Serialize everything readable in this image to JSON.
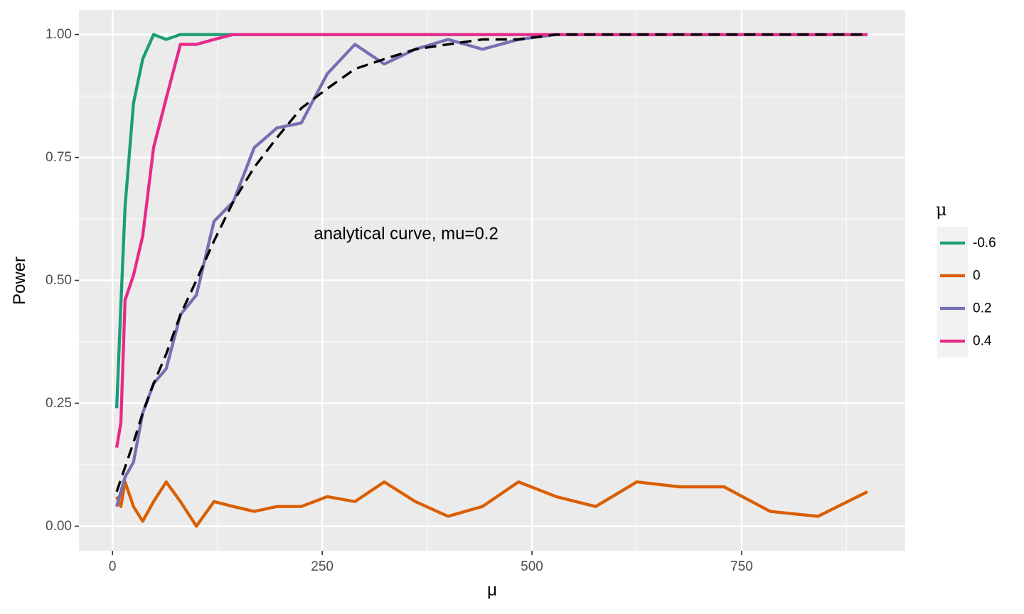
{
  "chart_data": {
    "type": "line",
    "xlabel": "μ",
    "ylabel": "Power",
    "xlim": [
      -40,
      945
    ],
    "ylim": [
      -0.05,
      1.05
    ],
    "x_ticks": [
      0,
      250,
      500,
      750
    ],
    "x_tick_labels": [
      "0",
      "250",
      "500",
      "750"
    ],
    "y_ticks": [
      0.0,
      0.25,
      0.5,
      0.75,
      1.0
    ],
    "y_tick_labels": [
      "0.00",
      "0.25",
      "0.50",
      "0.75",
      "1.00"
    ],
    "grid": true,
    "legend": {
      "title": "μ",
      "position": "right"
    },
    "series": [
      {
        "name": "-0.6",
        "color": "#1b9e77",
        "style": "solid",
        "points": [
          [
            5,
            0.24
          ],
          [
            10,
            0.45
          ],
          [
            15,
            0.65
          ],
          [
            25,
            0.86
          ],
          [
            36,
            0.95
          ],
          [
            49,
            1.0
          ],
          [
            64,
            0.99
          ],
          [
            81,
            1.0
          ],
          [
            100,
            1.0
          ],
          [
            144,
            1.0
          ],
          [
            900,
            1.0
          ]
        ]
      },
      {
        "name": "0",
        "color": "#d95f02",
        "style": "solid",
        "points": [
          [
            5,
            0.06
          ],
          [
            10,
            0.04
          ],
          [
            15,
            0.09
          ],
          [
            25,
            0.04
          ],
          [
            36,
            0.01
          ],
          [
            49,
            0.05
          ],
          [
            64,
            0.09
          ],
          [
            81,
            0.05
          ],
          [
            100,
            0.0
          ],
          [
            121,
            0.05
          ],
          [
            144,
            0.04
          ],
          [
            169,
            0.03
          ],
          [
            196,
            0.04
          ],
          [
            225,
            0.04
          ],
          [
            256,
            0.06
          ],
          [
            289,
            0.05
          ],
          [
            324,
            0.09
          ],
          [
            361,
            0.05
          ],
          [
            400,
            0.02
          ],
          [
            441,
            0.04
          ],
          [
            484,
            0.09
          ],
          [
            529,
            0.06
          ],
          [
            576,
            0.04
          ],
          [
            625,
            0.09
          ],
          [
            676,
            0.08
          ],
          [
            729,
            0.08
          ],
          [
            784,
            0.03
          ],
          [
            841,
            0.02
          ],
          [
            900,
            0.07
          ]
        ]
      },
      {
        "name": "0.2",
        "color": "#7570b3",
        "style": "solid",
        "points": [
          [
            5,
            0.04
          ],
          [
            10,
            0.07
          ],
          [
            15,
            0.1
          ],
          [
            25,
            0.13
          ],
          [
            36,
            0.23
          ],
          [
            49,
            0.29
          ],
          [
            64,
            0.32
          ],
          [
            81,
            0.43
          ],
          [
            100,
            0.47
          ],
          [
            121,
            0.62
          ],
          [
            144,
            0.66
          ],
          [
            169,
            0.77
          ],
          [
            196,
            0.81
          ],
          [
            225,
            0.82
          ],
          [
            256,
            0.92
          ],
          [
            289,
            0.98
          ],
          [
            324,
            0.94
          ],
          [
            361,
            0.97
          ],
          [
            400,
            0.99
          ],
          [
            441,
            0.97
          ],
          [
            484,
            0.99
          ],
          [
            529,
            1.0
          ],
          [
            576,
            1.0
          ],
          [
            900,
            1.0
          ]
        ]
      },
      {
        "name": "0.4",
        "color": "#e7298a",
        "style": "solid",
        "points": [
          [
            5,
            0.16
          ],
          [
            10,
            0.21
          ],
          [
            15,
            0.46
          ],
          [
            25,
            0.51
          ],
          [
            36,
            0.59
          ],
          [
            49,
            0.77
          ],
          [
            64,
            0.87
          ],
          [
            81,
            0.98
          ],
          [
            100,
            0.98
          ],
          [
            121,
            0.99
          ],
          [
            144,
            1.0
          ],
          [
            900,
            1.0
          ]
        ]
      },
      {
        "name": "",
        "color": "#000000",
        "style": "dashed",
        "in_legend": false,
        "points": [
          [
            5,
            0.07
          ],
          [
            15,
            0.12
          ],
          [
            25,
            0.17
          ],
          [
            36,
            0.23
          ],
          [
            49,
            0.29
          ],
          [
            64,
            0.35
          ],
          [
            81,
            0.43
          ],
          [
            100,
            0.5
          ],
          [
            121,
            0.58
          ],
          [
            144,
            0.66
          ],
          [
            169,
            0.73
          ],
          [
            196,
            0.79
          ],
          [
            225,
            0.85
          ],
          [
            256,
            0.89
          ],
          [
            289,
            0.93
          ],
          [
            324,
            0.95
          ],
          [
            361,
            0.97
          ],
          [
            400,
            0.98
          ],
          [
            441,
            0.99
          ],
          [
            484,
            0.99
          ],
          [
            529,
            1.0
          ],
          [
            576,
            1.0
          ],
          [
            625,
            1.0
          ],
          [
            900,
            1.0
          ]
        ]
      }
    ],
    "annotations": [
      {
        "text": "analytical curve, mu=0.2",
        "x": 350,
        "y": 0.595
      }
    ]
  }
}
